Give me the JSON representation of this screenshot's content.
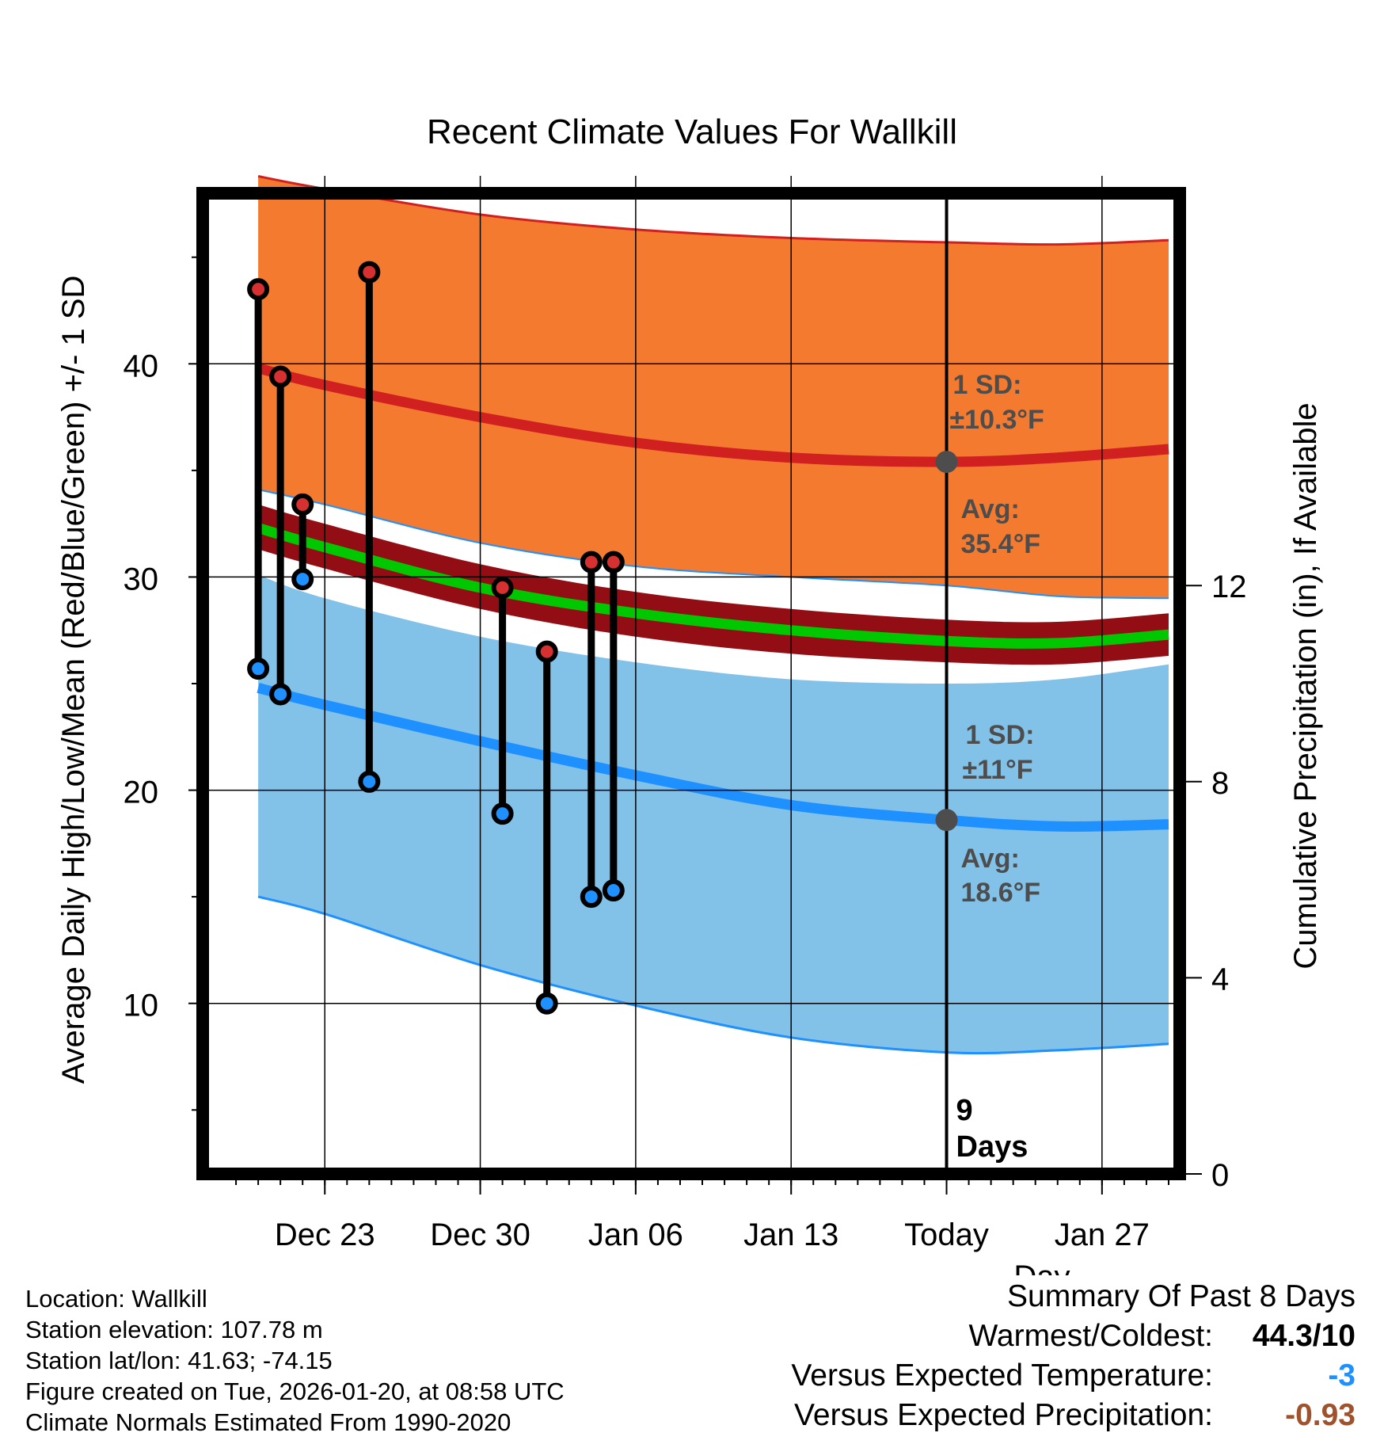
{
  "chart_data": {
    "type": "line",
    "title": "Recent Climate Values For Wallkill",
    "xlabel": "Day",
    "ylabel": "Average Daily High/Low/Mean (Red/Blue/Green) +/- 1 SD",
    "y2label": "Cumulative Precipitation (in), If Available",
    "x_range_days": [
      -33.5,
      10.5
    ],
    "ylim": [
      2,
      48
    ],
    "y2lim": [
      0,
      20
    ],
    "x_ticks": [
      {
        "day": -28,
        "label": "Dec 23"
      },
      {
        "day": -21,
        "label": "Dec 30"
      },
      {
        "day": -14,
        "label": "Jan 06"
      },
      {
        "day": -7,
        "label": "Jan 13"
      },
      {
        "day": 0,
        "label": "Today"
      },
      {
        "day": 7,
        "label": "Jan 27"
      }
    ],
    "y_ticks": [
      10,
      20,
      30,
      40
    ],
    "y_minor_ticks": [
      5,
      15,
      25,
      35,
      45
    ],
    "y2_ticks": [
      0,
      4,
      8,
      12
    ],
    "normals": {
      "days": [
        -31,
        -28,
        -21,
        -14,
        -7,
        0,
        5,
        10
      ],
      "high_avg": [
        39.8,
        39.0,
        37.5,
        36.3,
        35.6,
        35.4,
        35.6,
        36.0
      ],
      "high_upper": [
        48.8,
        48.2,
        47.0,
        46.3,
        45.9,
        45.7,
        45.6,
        45.8
      ],
      "high_lower": [
        34.1,
        33.4,
        31.6,
        30.5,
        30.0,
        29.6,
        29.1,
        29.0
      ],
      "mean_avg": [
        32.3,
        31.4,
        29.5,
        28.3,
        27.5,
        27.0,
        26.9,
        27.3
      ],
      "mean_upper": [
        33.4,
        32.5,
        30.6,
        29.3,
        28.5,
        28.0,
        27.9,
        28.3
      ],
      "mean_lower": [
        31.3,
        30.4,
        28.5,
        27.2,
        26.4,
        26.0,
        25.9,
        26.3
      ],
      "low_avg": [
        24.8,
        24.0,
        22.3,
        20.7,
        19.3,
        18.6,
        18.3,
        18.4
      ],
      "low_upper": [
        30.1,
        29.0,
        27.2,
        26.0,
        25.2,
        25.0,
        25.2,
        25.9
      ],
      "low_lower": [
        15.0,
        14.2,
        11.8,
        9.9,
        8.4,
        7.7,
        7.8,
        8.1
      ]
    },
    "observed": [
      {
        "day": -31,
        "high": 43.5,
        "low": 25.7
      },
      {
        "day": -30,
        "high": 39.4,
        "low": 24.5
      },
      {
        "day": -29,
        "high": 33.4,
        "low": 29.9
      },
      {
        "day": -26,
        "high": 44.3,
        "low": 20.4
      },
      {
        "day": -20,
        "high": 29.5,
        "low": 18.9
      },
      {
        "day": -18,
        "high": 26.5,
        "low": 10.0
      },
      {
        "day": -16,
        "high": 30.7,
        "low": 15.0
      },
      {
        "day": -15,
        "high": 30.7,
        "low": 15.3
      }
    ],
    "today_markers": [
      {
        "day": 0,
        "value": 35.4
      },
      {
        "day": 0,
        "value": 18.6
      }
    ],
    "annotations": {
      "high_sd_label": "1 SD:",
      "high_sd_value": "±10.3°F",
      "high_avg_label": "Avg:",
      "high_avg_value": "35.4°F",
      "low_sd_label": "1 SD:",
      "low_sd_value": "±11°F",
      "low_avg_label": "Avg:",
      "low_avg_value": "18.6°F",
      "days_count": "9",
      "days_word": "Days"
    },
    "colors": {
      "high_band": "#f47a30",
      "high_line": "#d02020",
      "mean_band": "#930e14",
      "mean_line": "#00c800",
      "low_band": "#82c1e8",
      "low_line": "#1e90ff",
      "high_marker": "#d63030",
      "low_marker": "#1e90ff",
      "today_marker": "#4d4d4d"
    }
  },
  "footer": {
    "location": "Location: Wallkill",
    "elevation": "Station elevation: 107.78 m",
    "latlon": "Station lat/lon: 41.63; -74.15",
    "created": "Figure created on Tue, 2026-01-20, at 08:58 UTC",
    "normals": "Climate Normals Estimated From 1990-2020"
  },
  "summary": {
    "title": "Summary Of Past 8 Days",
    "warm_cold_label": "Warmest/Coldest:",
    "warm_cold_value": "44.3/10",
    "temp_label": "Versus Expected Temperature:",
    "temp_value": "-3",
    "temp_color": "#1e90ff",
    "precip_label": "Versus Expected Precipitation:",
    "precip_value": "-0.93",
    "precip_color": "#a0522d"
  }
}
